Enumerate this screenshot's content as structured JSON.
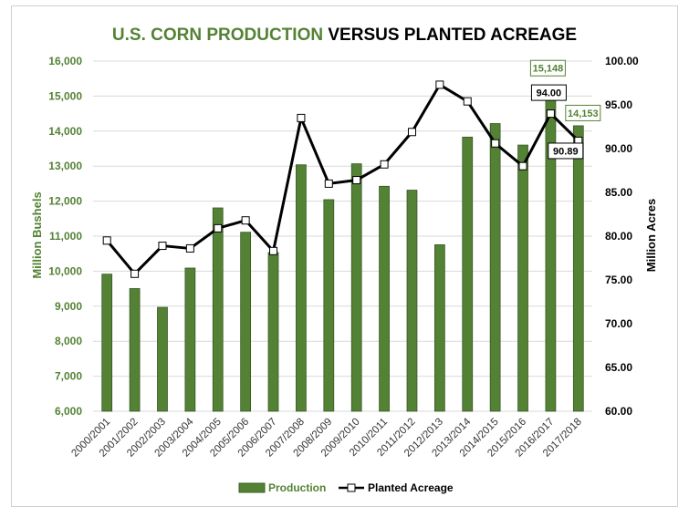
{
  "chart_data": {
    "type": "bar+line",
    "title_part1": "U.S. CORN PRODUCTION",
    "title_part2": " VERSUS PLANTED ACREAGE",
    "categories": [
      "2000/2001",
      "2001/2002",
      "2002/2003",
      "2003/2004",
      "2004/2005",
      "2005/2006",
      "2006/2007",
      "2007/2008",
      "2008/2009",
      "2009/2010",
      "2010/2011",
      "2011/2012",
      "2012/2013",
      "2013/2014",
      "2014/2015",
      "2015/2016",
      "2016/2017",
      "2017/2018"
    ],
    "series": [
      {
        "name": "Production",
        "type": "bar",
        "axis": "left",
        "color": "#548235",
        "values": [
          9915,
          9503,
          8967,
          10089,
          11807,
          11112,
          10531,
          13038,
          12043,
          13067,
          12425,
          12314,
          10755,
          13829,
          14216,
          13602,
          15148,
          14153
        ]
      },
      {
        "name": "Planted Acreage",
        "type": "line",
        "axis": "right",
        "color": "#000000",
        "values": [
          79.5,
          75.7,
          78.9,
          78.6,
          80.9,
          81.8,
          78.3,
          93.5,
          86.0,
          86.4,
          88.2,
          91.9,
          97.3,
          95.4,
          90.6,
          88.0,
          94.0,
          90.89
        ]
      }
    ],
    "ylabel": "Million Bushels",
    "ylabel_right": "Million Acres",
    "ylim": [
      6000,
      16000
    ],
    "ylim_right": [
      60,
      100
    ],
    "yticks": [
      "6,000",
      "7,000",
      "8,000",
      "9,000",
      "10,000",
      "11,000",
      "12,000",
      "13,000",
      "14,000",
      "15,000",
      "16,000"
    ],
    "yticks_right": [
      "60.00",
      "65.00",
      "70.00",
      "75.00",
      "80.00",
      "85.00",
      "90.00",
      "95.00",
      "100.00"
    ],
    "data_labels": [
      {
        "series": "Production",
        "index": 16,
        "text": "15,148"
      },
      {
        "series": "Production",
        "index": 17,
        "text": "14,153"
      },
      {
        "series": "Planted Acreage",
        "index": 16,
        "text": "94.00"
      },
      {
        "series": "Planted Acreage",
        "index": 17,
        "text": "90.89"
      }
    ],
    "legend": {
      "position": "bottom",
      "production_label": "Production",
      "acreage_label": "Planted Acreage"
    }
  }
}
